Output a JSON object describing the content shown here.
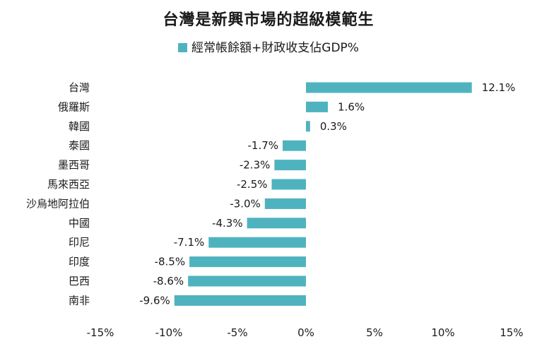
{
  "chart_data": {
    "type": "bar",
    "orientation": "horizontal",
    "title": "台灣是新興市場的超級模範生",
    "series": [
      {
        "name": "經常帳餘額+財政收支佔GDP%",
        "color": "#4fb3bf",
        "values": [
          12.1,
          1.6,
          0.3,
          -1.7,
          -2.3,
          -2.5,
          -3.0,
          -4.3,
          -7.1,
          -8.5,
          -8.6,
          -9.6
        ]
      }
    ],
    "categories": [
      "台灣",
      "俄羅斯",
      "韓國",
      "泰國",
      "墨西哥",
      "馬來西亞",
      "沙烏地阿拉伯",
      "中國",
      "印尼",
      "印度",
      "巴西",
      "南非"
    ],
    "value_labels": [
      "12.1%",
      "1.6%",
      "0.3%",
      "-1.7%",
      "-2.3%",
      "-2.5%",
      "-3.0%",
      "-4.3%",
      "-7.1%",
      "-8.5%",
      "-8.6%",
      "-9.6%"
    ],
    "xlim": [
      -15,
      15
    ],
    "xticks": [
      -15,
      -10,
      -5,
      0,
      5,
      10,
      15
    ],
    "xtick_labels": [
      "-15%",
      "-10%",
      "-5%",
      "0%",
      "5%",
      "10%",
      "15%"
    ],
    "legend_position": "top-center",
    "grid": false
  }
}
